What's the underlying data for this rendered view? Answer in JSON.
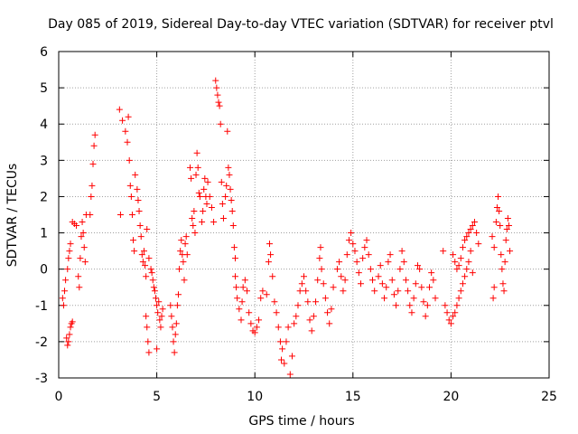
{
  "chart_data": {
    "type": "scatter",
    "title": "Day 085 of 2019, Sidereal Day-to-day VTEC variation (SDTVAR) for receiver ptvl",
    "xlabel": "GPS time / hours",
    "ylabel": "SDTVAR / TECUs",
    "xlim": [
      0,
      25
    ],
    "ylim": [
      -3,
      6
    ],
    "xticks": [
      "0",
      "5",
      "10",
      "15",
      "20",
      "25"
    ],
    "yticks": [
      "-3",
      "-2",
      "-1",
      "0",
      "1",
      "2",
      "3",
      "4",
      "5",
      "6"
    ],
    "grid": true,
    "marker": "plus",
    "color": "#ff0000",
    "series": [
      {
        "name": "SDTVAR",
        "points": [
          [
            0.2,
            -0.8
          ],
          [
            0.25,
            -1.0
          ],
          [
            0.3,
            -0.6
          ],
          [
            0.35,
            -0.3
          ],
          [
            0.4,
            -1.9
          ],
          [
            0.45,
            -2.1
          ],
          [
            0.5,
            -2.0
          ],
          [
            0.55,
            -1.8
          ],
          [
            0.6,
            -1.6
          ],
          [
            0.65,
            -1.5
          ],
          [
            0.7,
            -1.45
          ],
          [
            0.45,
            0.0
          ],
          [
            0.5,
            0.3
          ],
          [
            0.55,
            0.5
          ],
          [
            0.6,
            0.7
          ],
          [
            0.7,
            1.3
          ],
          [
            0.8,
            1.25
          ],
          [
            0.9,
            1.2
          ],
          [
            1.0,
            -0.2
          ],
          [
            1.05,
            -0.5
          ],
          [
            1.1,
            0.3
          ],
          [
            1.15,
            0.9
          ],
          [
            1.2,
            1.3
          ],
          [
            1.25,
            1.0
          ],
          [
            1.3,
            0.6
          ],
          [
            1.35,
            0.2
          ],
          [
            1.4,
            1.5
          ],
          [
            1.6,
            1.5
          ],
          [
            1.65,
            2.0
          ],
          [
            1.7,
            2.3
          ],
          [
            1.75,
            2.9
          ],
          [
            1.8,
            3.4
          ],
          [
            1.85,
            3.7
          ],
          [
            3.1,
            4.4
          ],
          [
            3.15,
            1.5
          ],
          [
            3.25,
            4.1
          ],
          [
            3.4,
            3.8
          ],
          [
            3.5,
            3.5
          ],
          [
            3.55,
            4.2
          ],
          [
            3.6,
            3.0
          ],
          [
            3.65,
            2.3
          ],
          [
            3.7,
            2.0
          ],
          [
            3.75,
            1.5
          ],
          [
            3.8,
            0.8
          ],
          [
            3.85,
            0.5
          ],
          [
            3.9,
            2.6
          ],
          [
            4.0,
            2.2
          ],
          [
            4.05,
            1.9
          ],
          [
            4.1,
            1.6
          ],
          [
            4.15,
            1.2
          ],
          [
            4.2,
            0.9
          ],
          [
            4.25,
            0.4
          ],
          [
            4.3,
            0.2
          ],
          [
            4.35,
            0.5
          ],
          [
            4.4,
            0.1
          ],
          [
            4.45,
            -0.2
          ],
          [
            4.5,
            1.1
          ],
          [
            4.6,
            0.3
          ],
          [
            4.7,
            0.0
          ],
          [
            4.75,
            -0.1
          ],
          [
            4.8,
            -0.3
          ],
          [
            4.85,
            -0.5
          ],
          [
            4.9,
            -0.6
          ],
          [
            4.95,
            -0.8
          ],
          [
            5.0,
            -1.0
          ],
          [
            5.05,
            -1.2
          ],
          [
            5.1,
            -0.9
          ],
          [
            5.15,
            -1.4
          ],
          [
            5.2,
            -1.6
          ],
          [
            5.25,
            -1.3
          ],
          [
            5.3,
            -1.1
          ],
          [
            4.45,
            -1.3
          ],
          [
            4.5,
            -1.6
          ],
          [
            4.55,
            -2.0
          ],
          [
            4.6,
            -2.3
          ],
          [
            5.0,
            -2.2
          ],
          [
            5.7,
            -1.0
          ],
          [
            5.75,
            -1.3
          ],
          [
            5.8,
            -1.6
          ],
          [
            5.85,
            -2.0
          ],
          [
            5.9,
            -2.3
          ],
          [
            5.95,
            -1.8
          ],
          [
            6.0,
            -1.5
          ],
          [
            6.05,
            -1.0
          ],
          [
            6.1,
            -0.7
          ],
          [
            6.15,
            0.0
          ],
          [
            6.2,
            0.5
          ],
          [
            6.25,
            0.8
          ],
          [
            6.3,
            0.4
          ],
          [
            6.35,
            0.2
          ],
          [
            6.4,
            -0.3
          ],
          [
            6.45,
            0.7
          ],
          [
            6.5,
            0.9
          ],
          [
            6.55,
            0.4
          ],
          [
            6.7,
            2.8
          ],
          [
            6.75,
            2.5
          ],
          [
            6.8,
            1.4
          ],
          [
            6.85,
            1.2
          ],
          [
            6.9,
            1.6
          ],
          [
            6.95,
            1.0
          ],
          [
            7.0,
            2.6
          ],
          [
            7.05,
            3.2
          ],
          [
            7.1,
            2.8
          ],
          [
            7.15,
            2.1
          ],
          [
            7.2,
            2.0
          ],
          [
            7.3,
            1.3
          ],
          [
            7.35,
            1.6
          ],
          [
            7.4,
            2.2
          ],
          [
            7.45,
            2.5
          ],
          [
            7.5,
            2.0
          ],
          [
            7.55,
            1.8
          ],
          [
            7.6,
            2.4
          ],
          [
            7.7,
            2.0
          ],
          [
            7.8,
            1.7
          ],
          [
            7.9,
            1.3
          ],
          [
            8.0,
            5.2
          ],
          [
            8.05,
            5.0
          ],
          [
            8.1,
            4.8
          ],
          [
            8.15,
            4.6
          ],
          [
            8.2,
            4.5
          ],
          [
            8.25,
            4.0
          ],
          [
            8.3,
            2.4
          ],
          [
            8.35,
            1.8
          ],
          [
            8.4,
            1.4
          ],
          [
            8.5,
            2.0
          ],
          [
            8.55,
            2.3
          ],
          [
            8.6,
            3.8
          ],
          [
            8.65,
            2.8
          ],
          [
            8.7,
            2.6
          ],
          [
            8.75,
            2.2
          ],
          [
            8.8,
            1.9
          ],
          [
            8.85,
            1.6
          ],
          [
            8.9,
            1.2
          ],
          [
            8.95,
            0.6
          ],
          [
            9.0,
            0.3
          ],
          [
            9.0,
            -0.2
          ],
          [
            9.05,
            -0.5
          ],
          [
            9.1,
            -0.8
          ],
          [
            9.2,
            -1.1
          ],
          [
            9.3,
            -1.4
          ],
          [
            9.35,
            -0.9
          ],
          [
            9.4,
            -0.5
          ],
          [
            9.5,
            -0.3
          ],
          [
            9.6,
            -0.6
          ],
          [
            9.7,
            -1.2
          ],
          [
            9.8,
            -1.5
          ],
          [
            9.9,
            -1.7
          ],
          [
            10.0,
            -1.75
          ],
          [
            10.1,
            -1.6
          ],
          [
            10.2,
            -1.4
          ],
          [
            10.3,
            -0.8
          ],
          [
            10.4,
            -0.6
          ],
          [
            10.6,
            -0.7
          ],
          [
            10.7,
            0.2
          ],
          [
            10.75,
            0.7
          ],
          [
            10.8,
            0.4
          ],
          [
            10.9,
            -0.2
          ],
          [
            11.0,
            -0.9
          ],
          [
            11.1,
            -1.2
          ],
          [
            11.2,
            -1.6
          ],
          [
            11.3,
            -2.0
          ],
          [
            11.35,
            -2.5
          ],
          [
            11.4,
            -2.2
          ],
          [
            11.5,
            -2.6
          ],
          [
            11.6,
            -2.0
          ],
          [
            11.7,
            -1.6
          ],
          [
            11.8,
            -2.9
          ],
          [
            11.9,
            -2.4
          ],
          [
            12.0,
            -1.5
          ],
          [
            12.1,
            -1.3
          ],
          [
            12.2,
            -1.0
          ],
          [
            12.3,
            -0.6
          ],
          [
            12.4,
            -0.4
          ],
          [
            12.5,
            -0.2
          ],
          [
            12.6,
            -0.6
          ],
          [
            12.7,
            -0.9
          ],
          [
            12.8,
            -1.4
          ],
          [
            12.9,
            -1.7
          ],
          [
            13.0,
            -1.3
          ],
          [
            13.1,
            -0.9
          ],
          [
            13.2,
            -0.3
          ],
          [
            13.3,
            0.3
          ],
          [
            13.35,
            0.6
          ],
          [
            13.4,
            0.0
          ],
          [
            13.5,
            -0.4
          ],
          [
            13.6,
            -0.8
          ],
          [
            13.7,
            -1.2
          ],
          [
            13.8,
            -1.5
          ],
          [
            13.9,
            -1.1
          ],
          [
            14.0,
            -0.5
          ],
          [
            14.2,
            0.0
          ],
          [
            14.3,
            0.2
          ],
          [
            14.4,
            -0.2
          ],
          [
            14.5,
            -0.6
          ],
          [
            14.6,
            -0.3
          ],
          [
            14.7,
            0.4
          ],
          [
            14.8,
            0.8
          ],
          [
            14.9,
            1.0
          ],
          [
            15.0,
            0.7
          ],
          [
            15.1,
            0.5
          ],
          [
            15.2,
            0.2
          ],
          [
            15.3,
            -0.1
          ],
          [
            15.4,
            -0.4
          ],
          [
            15.5,
            0.3
          ],
          [
            15.6,
            0.6
          ],
          [
            15.7,
            0.8
          ],
          [
            15.8,
            0.4
          ],
          [
            15.9,
            0.0
          ],
          [
            16.0,
            -0.3
          ],
          [
            16.1,
            -0.6
          ],
          [
            16.3,
            -0.2
          ],
          [
            16.4,
            0.1
          ],
          [
            16.5,
            -0.4
          ],
          [
            16.6,
            -0.8
          ],
          [
            16.7,
            -0.5
          ],
          [
            16.8,
            0.2
          ],
          [
            16.9,
            0.4
          ],
          [
            17.0,
            -0.3
          ],
          [
            17.1,
            -0.7
          ],
          [
            17.2,
            -1.0
          ],
          [
            17.3,
            -0.6
          ],
          [
            17.4,
            0.0
          ],
          [
            17.5,
            0.5
          ],
          [
            17.6,
            0.2
          ],
          [
            17.7,
            -0.3
          ],
          [
            17.8,
            -0.6
          ],
          [
            17.9,
            -1.0
          ],
          [
            18.0,
            -1.2
          ],
          [
            18.1,
            -0.8
          ],
          [
            18.2,
            -0.4
          ],
          [
            18.3,
            0.1
          ],
          [
            18.4,
            0.0
          ],
          [
            18.5,
            -0.5
          ],
          [
            18.6,
            -0.9
          ],
          [
            18.7,
            -1.3
          ],
          [
            18.8,
            -1.0
          ],
          [
            18.9,
            -0.5
          ],
          [
            19.0,
            -0.1
          ],
          [
            19.1,
            -0.3
          ],
          [
            19.2,
            -0.8
          ],
          [
            19.6,
            0.5
          ],
          [
            19.7,
            -1.0
          ],
          [
            19.8,
            -1.2
          ],
          [
            19.9,
            -1.4
          ],
          [
            20.0,
            -1.5
          ],
          [
            20.1,
            -1.3
          ],
          [
            20.2,
            -1.2
          ],
          [
            20.3,
            -1.0
          ],
          [
            20.4,
            -0.8
          ],
          [
            20.5,
            -0.6
          ],
          [
            20.6,
            -0.4
          ],
          [
            20.7,
            -0.2
          ],
          [
            20.8,
            0.0
          ],
          [
            20.9,
            0.2
          ],
          [
            21.0,
            0.5
          ],
          [
            21.1,
            -0.1
          ],
          [
            20.1,
            0.4
          ],
          [
            20.2,
            0.2
          ],
          [
            20.3,
            0.0
          ],
          [
            20.4,
            0.1
          ],
          [
            20.5,
            0.3
          ],
          [
            20.6,
            0.6
          ],
          [
            20.7,
            0.8
          ],
          [
            20.8,
            0.9
          ],
          [
            20.9,
            1.0
          ],
          [
            21.0,
            1.1
          ],
          [
            21.1,
            1.2
          ],
          [
            21.2,
            1.3
          ],
          [
            21.3,
            1.0
          ],
          [
            21.4,
            0.7
          ],
          [
            22.1,
            0.9
          ],
          [
            22.2,
            0.6
          ],
          [
            22.3,
            1.3
          ],
          [
            22.35,
            1.7
          ],
          [
            22.4,
            2.0
          ],
          [
            22.45,
            1.6
          ],
          [
            22.5,
            1.2
          ],
          [
            22.55,
            0.4
          ],
          [
            22.6,
            0.0
          ],
          [
            22.65,
            -0.4
          ],
          [
            22.7,
            -0.6
          ],
          [
            22.75,
            0.2
          ],
          [
            22.8,
            0.8
          ],
          [
            22.85,
            1.1
          ],
          [
            22.9,
            1.4
          ],
          [
            22.95,
            1.2
          ],
          [
            23.0,
            0.5
          ],
          [
            22.2,
            -0.5
          ],
          [
            22.15,
            -0.8
          ]
        ]
      }
    ]
  }
}
